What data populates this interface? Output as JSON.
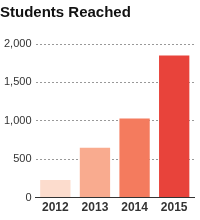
{
  "chart_data": {
    "type": "bar",
    "title": "Students Reached",
    "categories": [
      "2012",
      "2013",
      "2014",
      "2015"
    ],
    "values": [
      230,
      650,
      1030,
      1850
    ],
    "colors": [
      "#fcdccd",
      "#f9ab8f",
      "#f47b5e",
      "#e8433b"
    ],
    "ylim": [
      0,
      2000
    ],
    "yticks": [
      0,
      500,
      {
        "value": 1000,
        "label": "1,000"
      },
      {
        "value": 1500,
        "label": "1,500"
      },
      {
        "value": 2000,
        "label": "2,000"
      }
    ],
    "grid": true
  }
}
